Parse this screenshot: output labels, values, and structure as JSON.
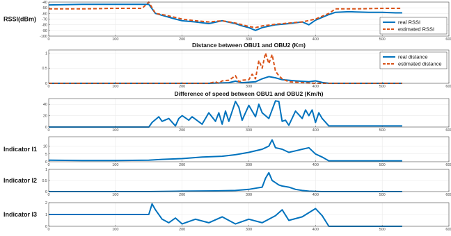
{
  "colors": {
    "real": "#0072bd",
    "estimated": "#d95319",
    "grid": "#e6e6e6",
    "axis": "#4d4d4d"
  },
  "chart_data": [
    {
      "type": "line",
      "title": "",
      "ylabel": "RSSI(dBm)",
      "xlim": [
        0,
        600
      ],
      "ylim": [
        -100,
        -40
      ],
      "xticks": [
        0,
        100,
        200,
        300,
        400,
        500,
        600
      ],
      "xtick_labels": [
        "0",
        "100",
        "200",
        "300",
        "400",
        "500",
        "600"
      ],
      "yticks": [
        -100,
        -90,
        -80,
        -70,
        -60,
        -50,
        -40
      ],
      "ytick_labels": [
        "-100",
        "-90",
        "-80",
        "-70",
        "-60",
        "-50",
        "-40"
      ],
      "grid": true,
      "legend": "bottom-right",
      "series": [
        {
          "name": "real RSSI",
          "style": "solid",
          "x": [
            0,
            50,
            100,
            130,
            150,
            160,
            175,
            190,
            200,
            220,
            240,
            260,
            280,
            290,
            300,
            310,
            320,
            340,
            360,
            380,
            390,
            400,
            420,
            430,
            450,
            480,
            500,
            520,
            530
          ],
          "y": [
            -45,
            -44,
            -44,
            -44,
            -44,
            -60,
            -65,
            -70,
            -73,
            -75,
            -78,
            -73,
            -78,
            -82,
            -85,
            -90,
            -85,
            -80,
            -78,
            -75,
            -80,
            -72,
            -62,
            -58,
            -57,
            -58,
            -58,
            -59,
            -59
          ]
        },
        {
          "name": "estimated RSSI",
          "style": "dashed",
          "x": [
            0,
            50,
            100,
            140,
            150,
            160,
            175,
            200,
            220,
            240,
            260,
            280,
            300,
            310,
            320,
            340,
            360,
            380,
            400,
            420,
            430,
            460,
            500,
            530
          ],
          "y": [
            -52,
            -52,
            -51,
            -51,
            -40,
            -60,
            -63,
            -70,
            -73,
            -75,
            -73,
            -77,
            -83,
            -85,
            -82,
            -79,
            -77,
            -75,
            -70,
            -60,
            -52,
            -52,
            -51,
            -51
          ]
        }
      ]
    },
    {
      "type": "line",
      "title": "Distance between OBU1 and OBU2 (Km)",
      "ylabel": "",
      "xlim": [
        0,
        600
      ],
      "ylim": [
        0,
        1.1
      ],
      "xticks": [
        0,
        100,
        200,
        300,
        400,
        500,
        600
      ],
      "xtick_labels": [
        "0",
        "100",
        "200",
        "300",
        "400",
        "500",
        "600"
      ],
      "yticks": [
        0,
        0.5,
        1
      ],
      "ytick_labels": [
        "0",
        "0.5",
        "1"
      ],
      "grid": true,
      "legend": "top-right",
      "series": [
        {
          "name": "real distance",
          "style": "solid",
          "x": [
            0,
            200,
            240,
            270,
            280,
            290,
            310,
            320,
            330,
            340,
            350,
            370,
            390,
            400,
            410,
            420,
            530
          ],
          "y": [
            0,
            0,
            0,
            0.02,
            0.07,
            0.02,
            0.05,
            0.15,
            0.22,
            0.18,
            0.12,
            0.08,
            0.05,
            0.08,
            0.03,
            0,
            0
          ]
        },
        {
          "name": "estimated distance",
          "style": "dashed",
          "x": [
            0,
            240,
            250,
            255,
            260,
            270,
            280,
            285,
            290,
            300,
            305,
            310,
            315,
            320,
            325,
            330,
            335,
            340,
            345,
            350,
            360,
            380,
            400,
            410,
            530
          ],
          "y": [
            0,
            0,
            0.05,
            0,
            0.08,
            0.1,
            0.25,
            0.05,
            0.1,
            0.12,
            0.3,
            0.15,
            0.75,
            0.5,
            1.0,
            0.65,
            0.95,
            0.4,
            0.25,
            0.15,
            0.05,
            0.02,
            0,
            0,
            0
          ]
        }
      ]
    },
    {
      "type": "line",
      "title": "Difference of speed between OBU1 and OBU2 (Km/h)",
      "ylabel": "",
      "xlim": [
        0,
        600
      ],
      "ylim": [
        0,
        50
      ],
      "xticks": [
        0,
        100,
        200,
        300,
        400,
        500,
        600
      ],
      "xtick_labels": [
        "0",
        "100",
        "200",
        "300",
        "400",
        "500",
        "600"
      ],
      "yticks": [
        0,
        20,
        40
      ],
      "ytick_labels": [
        "0",
        "20",
        "40"
      ],
      "grid": true,
      "series": [
        {
          "name": "",
          "style": "solid",
          "x": [
            0,
            150,
            155,
            165,
            170,
            180,
            190,
            195,
            200,
            210,
            215,
            230,
            240,
            250,
            255,
            260,
            265,
            270,
            280,
            285,
            290,
            300,
            310,
            315,
            320,
            330,
            340,
            345,
            350,
            355,
            360,
            370,
            380,
            385,
            390,
            395,
            400,
            405,
            410,
            420,
            530
          ],
          "y": [
            0,
            0,
            8,
            18,
            10,
            15,
            2,
            15,
            20,
            12,
            18,
            5,
            25,
            10,
            25,
            5,
            28,
            10,
            45,
            35,
            12,
            38,
            18,
            40,
            25,
            15,
            46,
            45,
            10,
            12,
            3,
            28,
            15,
            30,
            20,
            30,
            8,
            25,
            15,
            2,
            2
          ]
        }
      ]
    },
    {
      "type": "line",
      "title": "",
      "ylabel": "Indicator I1",
      "xlim": [
        0,
        600
      ],
      "ylim": [
        0,
        16
      ],
      "xticks": [
        0,
        100,
        200,
        300,
        400,
        500,
        600
      ],
      "xtick_labels": [
        "0",
        "100",
        "200",
        "300",
        "400",
        "500",
        "600"
      ],
      "yticks": [
        0,
        5,
        10
      ],
      "ytick_labels": [
        "0",
        "5",
        "10"
      ],
      "grid": true,
      "series": [
        {
          "name": "",
          "style": "solid",
          "x": [
            0,
            50,
            100,
            150,
            170,
            200,
            230,
            260,
            280,
            300,
            320,
            330,
            335,
            340,
            350,
            360,
            370,
            380,
            390,
            400,
            410,
            420,
            530
          ],
          "y": [
            1,
            0.8,
            0.8,
            1,
            1.5,
            2,
            3,
            3.5,
            4.5,
            6,
            8,
            10,
            14,
            9,
            8,
            6,
            7,
            8,
            9,
            5,
            3,
            0.6,
            0.6
          ]
        }
      ]
    },
    {
      "type": "line",
      "title": "",
      "ylabel": "Indicator I2",
      "xlim": [
        0,
        600
      ],
      "ylim": [
        0,
        1
      ],
      "xticks": [
        0,
        100,
        200,
        300,
        400,
        500,
        600
      ],
      "xtick_labels": [
        "0",
        "100",
        "200",
        "300",
        "400",
        "500",
        "600"
      ],
      "yticks": [
        0,
        0.5,
        1
      ],
      "ytick_labels": [
        "0",
        "0.5",
        "1"
      ],
      "grid": true,
      "series": [
        {
          "name": "",
          "style": "solid",
          "x": [
            0,
            150,
            200,
            250,
            280,
            300,
            310,
            320,
            325,
            330,
            335,
            340,
            345,
            350,
            360,
            370,
            380,
            390,
            400,
            410,
            530
          ],
          "y": [
            0,
            0,
            0.02,
            0.03,
            0.05,
            0.1,
            0.15,
            0.2,
            0.6,
            0.85,
            0.5,
            0.4,
            0.3,
            0.25,
            0.2,
            0.1,
            0.05,
            0.02,
            0.01,
            0,
            0
          ]
        }
      ]
    },
    {
      "type": "line",
      "title": "",
      "ylabel": "Indicator I3",
      "xlim": [
        0,
        600
      ],
      "ylim": [
        0,
        2
      ],
      "xticks": [
        0,
        100,
        200,
        300,
        400,
        500,
        600
      ],
      "xtick_labels": [
        "0",
        "100",
        "200",
        "300",
        "400",
        "500",
        "600"
      ],
      "yticks": [
        0,
        1,
        2
      ],
      "ytick_labels": [
        "0",
        "1",
        "2"
      ],
      "grid": true,
      "series": [
        {
          "name": "",
          "style": "solid",
          "x": [
            0,
            100,
            150,
            155,
            160,
            170,
            180,
            190,
            200,
            220,
            240,
            260,
            280,
            300,
            320,
            340,
            350,
            360,
            380,
            400,
            410,
            420,
            530
          ],
          "y": [
            1,
            1,
            1,
            1.9,
            1.4,
            0.6,
            0.3,
            0.7,
            0.2,
            0.6,
            0.3,
            0.8,
            0.2,
            0.6,
            0.3,
            0.9,
            1.4,
            0.5,
            0.8,
            1.5,
            0.9,
            0,
            0
          ]
        }
      ]
    }
  ]
}
